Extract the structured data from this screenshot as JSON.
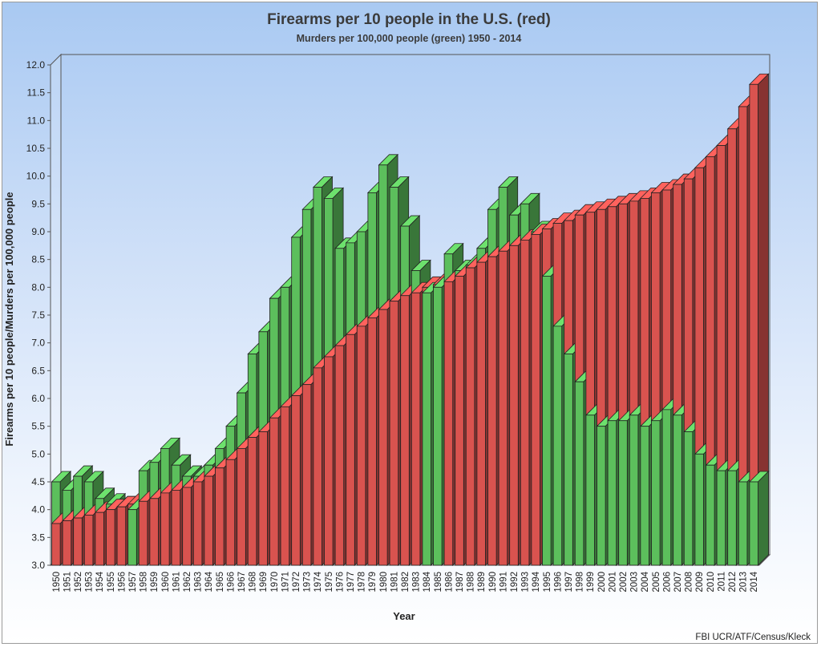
{
  "chart_data": {
    "type": "bar",
    "title": "Firearms per 10 people in the U.S. (red)",
    "subtitle": "Murders per 100,000 people (green) 1950 - 2014",
    "xlabel": "Year",
    "ylabel": "Firearms per 10 people/Murders per 100,000 people",
    "source": "FBI UCR/ATF/Census/Kleck",
    "ylim": [
      3.0,
      12.0
    ],
    "yticks": [
      "3.0",
      "3.5",
      "4.0",
      "4.5",
      "5.0",
      "5.5",
      "6.0",
      "6.5",
      "7.0",
      "7.5",
      "8.0",
      "8.5",
      "9.0",
      "9.5",
      "10.0",
      "10.5",
      "11.0",
      "11.5",
      "12.0"
    ],
    "categories": [
      "1950",
      "1951",
      "1952",
      "1953",
      "1954",
      "1955",
      "1956",
      "1957",
      "1958",
      "1959",
      "1960",
      "1961",
      "1962",
      "1963",
      "1964",
      "1965",
      "1966",
      "1967",
      "1968",
      "1969",
      "1970",
      "1971",
      "1972",
      "1973",
      "1974",
      "1975",
      "1976",
      "1977",
      "1978",
      "1979",
      "1980",
      "1981",
      "1982",
      "1983",
      "1984",
      "1985",
      "1986",
      "1987",
      "1988",
      "1989",
      "1990",
      "1991",
      "1992",
      "1993",
      "1994",
      "1995",
      "1996",
      "1997",
      "1998",
      "1999",
      "2000",
      "2001",
      "2002",
      "2003",
      "2004",
      "2005",
      "2006",
      "2007",
      "2008",
      "2009",
      "2010",
      "2011",
      "2012",
      "2013",
      "2014"
    ],
    "series": [
      {
        "name": "Firearms per 10 people",
        "color": "#d9534f",
        "values": [
          3.75,
          3.8,
          3.85,
          3.9,
          3.95,
          4.0,
          4.05,
          4.1,
          4.15,
          4.2,
          4.3,
          4.35,
          4.4,
          4.5,
          4.6,
          4.75,
          4.9,
          5.1,
          5.3,
          5.4,
          5.65,
          5.85,
          6.05,
          6.25,
          6.55,
          6.75,
          6.95,
          7.15,
          7.3,
          7.45,
          7.6,
          7.75,
          7.85,
          7.9,
          8.0,
          8.05,
          8.1,
          8.2,
          8.35,
          8.45,
          8.55,
          8.65,
          8.75,
          8.85,
          8.95,
          9.05,
          9.15,
          9.2,
          9.3,
          9.35,
          9.4,
          9.45,
          9.5,
          9.55,
          9.6,
          9.7,
          9.75,
          9.85,
          9.95,
          10.15,
          10.35,
          10.55,
          10.85,
          11.25,
          11.65
        ]
      },
      {
        "name": "Murders per 100,000 people",
        "color": "#5cbf5c",
        "values": [
          4.5,
          4.35,
          4.6,
          4.5,
          4.2,
          4.1,
          4.05,
          4.0,
          4.7,
          4.85,
          5.1,
          4.8,
          4.6,
          4.6,
          4.8,
          5.1,
          5.5,
          6.1,
          6.8,
          7.2,
          7.8,
          8.0,
          8.9,
          9.4,
          9.8,
          9.6,
          8.7,
          8.8,
          9.0,
          9.7,
          10.2,
          9.8,
          9.1,
          8.3,
          7.9,
          8.0,
          8.6,
          8.3,
          8.4,
          8.7,
          9.4,
          9.8,
          9.3,
          9.5,
          9.0,
          8.2,
          7.3,
          6.8,
          6.3,
          5.7,
          5.5,
          5.6,
          5.6,
          5.7,
          5.5,
          5.6,
          5.8,
          5.7,
          5.4,
          5.0,
          4.8,
          4.7,
          4.7,
          4.5,
          4.5
        ]
      }
    ]
  }
}
